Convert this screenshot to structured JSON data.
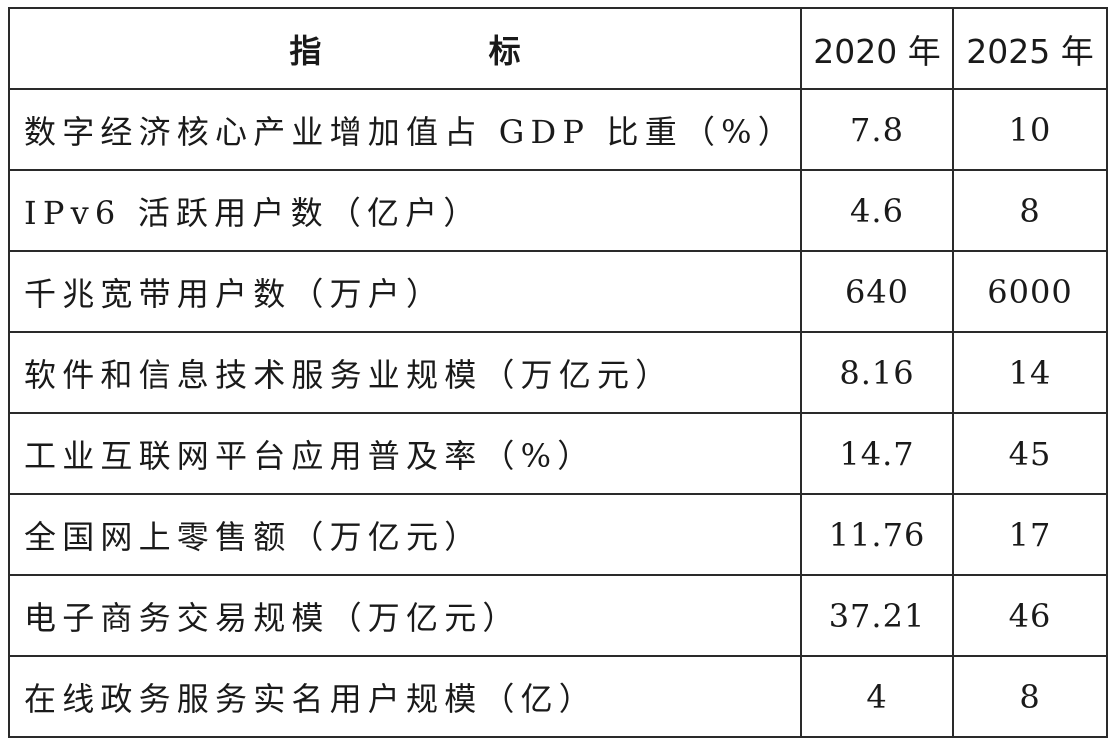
{
  "table": {
    "header": {
      "indicator": "指 标",
      "year_2020": "2020 年",
      "year_2025": "2025 年"
    },
    "rows": [
      {
        "indicator": "数字经济核心产业增加值占 GDP 比重（%）",
        "v2020": "7.8",
        "v2025": "10"
      },
      {
        "indicator": "IPv6 活跃用户数（亿户）",
        "v2020": "4.6",
        "v2025": "8"
      },
      {
        "indicator": "千兆宽带用户数（万户）",
        "v2020": "640",
        "v2025": "6000"
      },
      {
        "indicator": "软件和信息技术服务业规模（万亿元）",
        "v2020": "8.16",
        "v2025": "14"
      },
      {
        "indicator": "工业互联网平台应用普及率（%）",
        "v2020": "14.7",
        "v2025": "45"
      },
      {
        "indicator": "全国网上零售额（万亿元）",
        "v2020": "11.76",
        "v2025": "17"
      },
      {
        "indicator": "电子商务交易规模（万亿元）",
        "v2020": "37.21",
        "v2025": "46"
      },
      {
        "indicator": "在线政务服务实名用户规模（亿）",
        "v2020": "4",
        "v2025": "8"
      }
    ]
  }
}
